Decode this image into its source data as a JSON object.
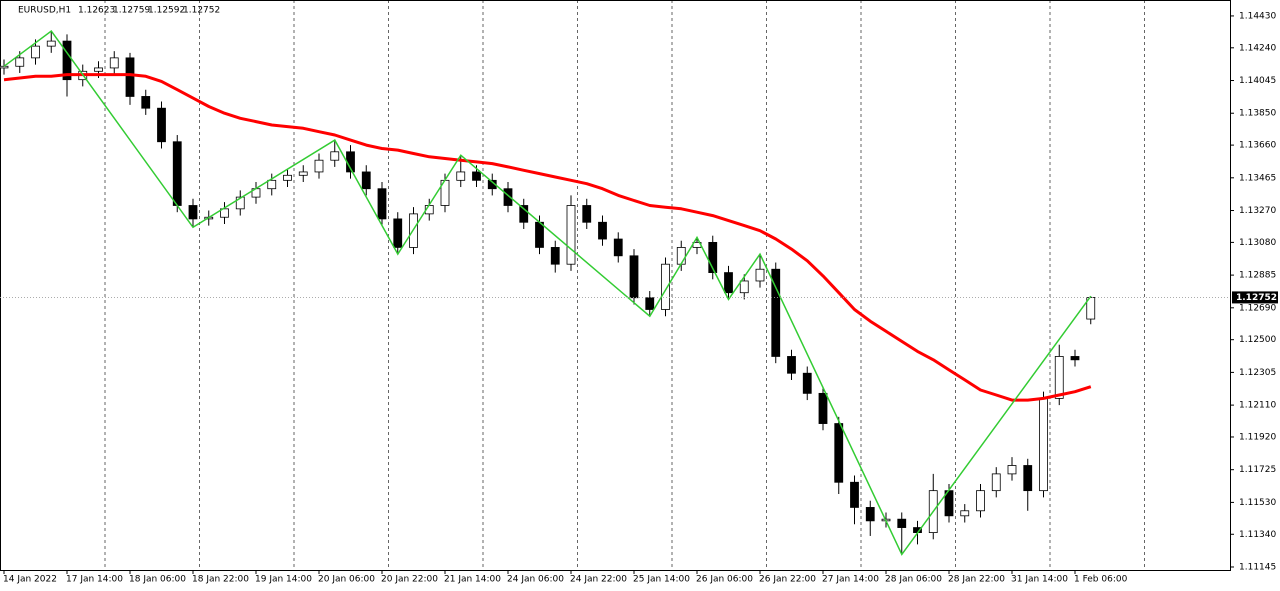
{
  "chart_data": {
    "type": "candlestick",
    "title": "EURUSD,H1",
    "categories": [
      "14 Jan 2022",
      null,
      null,
      null,
      "17 Jan 14:00",
      null,
      null,
      null,
      "18 Jan 06:00",
      null,
      null,
      null,
      "18 Jan 22:00",
      null,
      null,
      null,
      "19 Jan 14:00",
      null,
      null,
      null,
      "20 Jan 06:00",
      null,
      null,
      null,
      "20 Jan 22:00",
      null,
      null,
      null,
      "21 Jan 14:00",
      null,
      null,
      null,
      "24 Jan 06:00",
      null,
      null,
      null,
      "24 Jan 22:00",
      null,
      null,
      null,
      "25 Jan 14:00",
      null,
      null,
      null,
      "26 Jan 06:00",
      null,
      null,
      null,
      "26 Jan 22:00",
      null,
      null,
      null,
      "27 Jan 14:00",
      null,
      null,
      null,
      "28 Jan 06:00",
      null,
      null,
      null,
      "28 Jan 22:00",
      null,
      null,
      null,
      "31 Jan 14:00",
      null,
      null,
      null,
      "1 Feb 06:00",
      null
    ],
    "open": [
      1.1412,
      1.1413,
      1.1418,
      1.1425,
      1.1428,
      1.1405,
      1.141,
      1.1412,
      1.1418,
      1.1395,
      1.1388,
      1.1368,
      1.133,
      1.1322,
      1.1323,
      1.1328,
      1.1335,
      1.134,
      1.1345,
      1.1348,
      1.135,
      1.1357,
      1.1362,
      1.135,
      1.134,
      1.1322,
      1.1305,
      1.1325,
      1.133,
      1.1345,
      1.135,
      1.1345,
      1.134,
      1.133,
      1.132,
      1.1305,
      1.1295,
      1.133,
      1.132,
      1.131,
      1.13,
      1.1275,
      1.1268,
      1.1295,
      1.1305,
      1.1308,
      1.129,
      1.1278,
      1.1285,
      1.1292,
      1.124,
      1.123,
      1.1218,
      1.12,
      1.1165,
      1.115,
      1.1142,
      1.1143,
      1.1138,
      1.1135,
      1.116,
      1.1145,
      1.1148,
      1.116,
      1.117,
      1.1175,
      1.116,
      1.1215,
      1.124,
      1.12623
    ],
    "high": [
      1.1417,
      1.1422,
      1.1429,
      1.1434,
      1.1432,
      1.1414,
      1.1416,
      1.1422,
      1.1421,
      1.1399,
      1.1392,
      1.1372,
      1.1334,
      1.1327,
      1.1332,
      1.1339,
      1.1344,
      1.1349,
      1.1352,
      1.1354,
      1.1361,
      1.1369,
      1.1366,
      1.1354,
      1.1344,
      1.1326,
      1.1329,
      1.1334,
      1.1349,
      1.136,
      1.1354,
      1.1349,
      1.1344,
      1.1334,
      1.1324,
      1.1309,
      1.1336,
      1.1334,
      1.1324,
      1.1314,
      1.1304,
      1.1279,
      1.1299,
      1.1309,
      1.1311,
      1.1312,
      1.1294,
      1.1289,
      1.1301,
      1.1296,
      1.1244,
      1.1234,
      1.1222,
      1.1204,
      1.1169,
      1.1154,
      1.1147,
      1.1147,
      1.1142,
      1.117,
      1.1164,
      1.1152,
      1.1164,
      1.1174,
      1.118,
      1.1179,
      1.1219,
      1.1247,
      1.1244,
      1.12759
    ],
    "low": [
      1.1408,
      1.1409,
      1.1414,
      1.1421,
      1.1395,
      1.1401,
      1.1406,
      1.1408,
      1.139,
      1.1384,
      1.1364,
      1.1326,
      1.1317,
      1.1318,
      1.1319,
      1.1324,
      1.1331,
      1.1336,
      1.1341,
      1.1344,
      1.1346,
      1.1353,
      1.1346,
      1.1336,
      1.1318,
      1.1301,
      1.1301,
      1.1321,
      1.1326,
      1.1341,
      1.1341,
      1.1336,
      1.1326,
      1.1316,
      1.1301,
      1.129,
      1.1291,
      1.1316,
      1.1306,
      1.1296,
      1.1271,
      1.1264,
      1.1264,
      1.1291,
      1.1301,
      1.1286,
      1.1274,
      1.1274,
      1.1281,
      1.1236,
      1.1226,
      1.1214,
      1.1196,
      1.1158,
      1.114,
      1.1133,
      1.1138,
      1.1122,
      1.1128,
      1.1131,
      1.1141,
      1.1141,
      1.1144,
      1.1156,
      1.1166,
      1.1148,
      1.1156,
      1.1211,
      1.1234,
      1.12592
    ],
    "close": [
      1.1413,
      1.1418,
      1.1425,
      1.1428,
      1.1405,
      1.141,
      1.1412,
      1.1418,
      1.1395,
      1.1388,
      1.1368,
      1.133,
      1.1322,
      1.1323,
      1.1328,
      1.1335,
      1.134,
      1.1345,
      1.1348,
      1.135,
      1.1357,
      1.1362,
      1.135,
      1.134,
      1.1322,
      1.1305,
      1.1325,
      1.133,
      1.1345,
      1.135,
      1.1345,
      1.134,
      1.133,
      1.132,
      1.1305,
      1.1295,
      1.133,
      1.132,
      1.131,
      1.13,
      1.1275,
      1.1268,
      1.1295,
      1.1305,
      1.1308,
      1.129,
      1.1278,
      1.1285,
      1.1292,
      1.124,
      1.123,
      1.1218,
      1.12,
      1.1165,
      1.115,
      1.1142,
      1.1143,
      1.1138,
      1.1135,
      1.116,
      1.1145,
      1.1148,
      1.116,
      1.117,
      1.1175,
      1.116,
      1.1215,
      1.124,
      1.1238,
      1.12752
    ],
    "up_color": "#ffffff",
    "down_color": "#000000",
    "wick_color": "#000000",
    "moving_average": {
      "color": "#ff0000",
      "values": [
        1.1405,
        1.1406,
        1.1407,
        1.1407,
        1.1408,
        1.1408,
        1.1408,
        1.1408,
        1.1408,
        1.1407,
        1.1404,
        1.1399,
        1.1394,
        1.1389,
        1.1385,
        1.1382,
        1.138,
        1.1378,
        1.1377,
        1.1376,
        1.1374,
        1.1372,
        1.1369,
        1.1366,
        1.1364,
        1.1363,
        1.1361,
        1.1359,
        1.1358,
        1.1357,
        1.1356,
        1.1355,
        1.1353,
        1.1351,
        1.1349,
        1.1347,
        1.1345,
        1.1343,
        1.134,
        1.1336,
        1.1333,
        1.133,
        1.1329,
        1.1328,
        1.1326,
        1.1324,
        1.1321,
        1.1318,
        1.1315,
        1.131,
        1.1304,
        1.1297,
        1.1288,
        1.1278,
        1.1268,
        1.1261,
        1.1255,
        1.1249,
        1.1243,
        1.1238,
        1.1232,
        1.1226,
        1.122,
        1.1217,
        1.1214,
        1.1214,
        1.1215,
        1.1217,
        1.1219,
        1.1222
      ]
    },
    "zigzag": {
      "color": "#33cc33",
      "connect_gaps": true,
      "values": [
        1.1413,
        null,
        null,
        1.1434,
        null,
        null,
        null,
        null,
        null,
        null,
        null,
        null,
        1.1317,
        null,
        null,
        null,
        null,
        null,
        null,
        null,
        null,
        1.1369,
        null,
        null,
        null,
        1.1301,
        null,
        null,
        null,
        1.136,
        null,
        null,
        null,
        null,
        null,
        null,
        null,
        null,
        null,
        null,
        null,
        1.1264,
        null,
        null,
        1.1311,
        null,
        1.1274,
        null,
        1.1301,
        null,
        null,
        null,
        null,
        null,
        null,
        null,
        null,
        1.1122,
        null,
        null,
        null,
        null,
        null,
        null,
        null,
        null,
        null,
        null,
        null,
        1.12759
      ]
    },
    "ylim": [
      1.11127,
      1.14525
    ],
    "yticks": [
      {
        "value": 1.1443,
        "label": "1.14430"
      },
      {
        "value": 1.1424,
        "label": "1.14240"
      },
      {
        "value": 1.14045,
        "label": "1.14045"
      },
      {
        "value": 1.1385,
        "label": "1.13850"
      },
      {
        "value": 1.1366,
        "label": "1.13660"
      },
      {
        "value": 1.13465,
        "label": "1.13465"
      },
      {
        "value": 1.1327,
        "label": "1.13270"
      },
      {
        "value": 1.1308,
        "label": "1.13080"
      },
      {
        "value": 1.12885,
        "label": "1.12885"
      },
      {
        "value": 1.1269,
        "label": "1.12690"
      },
      {
        "value": 1.125,
        "label": "1.12500"
      },
      {
        "value": 1.12305,
        "label": "1.12305"
      },
      {
        "value": 1.1211,
        "label": "1.12110"
      },
      {
        "value": 1.1192,
        "label": "1.11920"
      },
      {
        "value": 1.11725,
        "label": "1.11725"
      },
      {
        "value": 1.1153,
        "label": "1.11530"
      },
      {
        "value": 1.1134,
        "label": "1.11340"
      },
      {
        "value": 1.11145,
        "label": "1.11145"
      }
    ],
    "price_line": true,
    "grid": true
  }
}
